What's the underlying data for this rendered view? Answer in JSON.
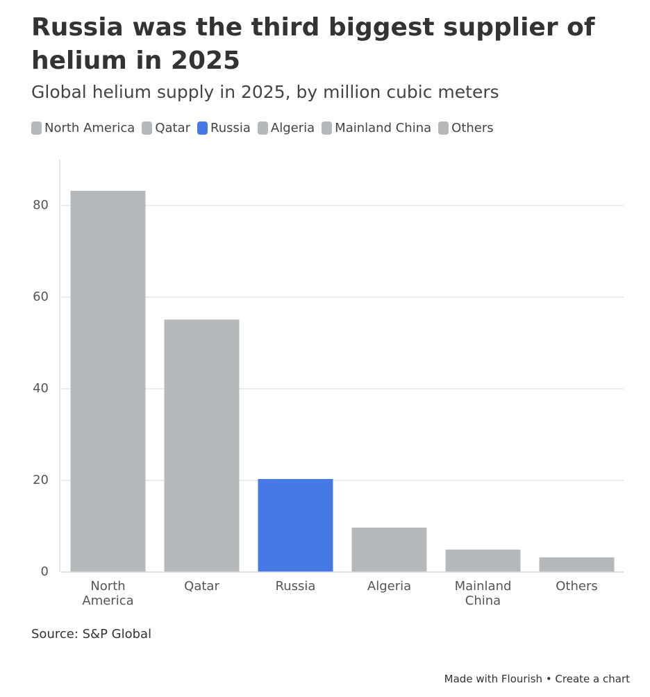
{
  "chart_data": {
    "type": "bar",
    "title": "Russia was the third biggest supplier of helium in 2025",
    "subtitle": "Global helium supply in 2025, by million cubic meters",
    "categories": [
      "North America",
      "Qatar",
      "Russia",
      "Algeria",
      "Mainland China",
      "Others"
    ],
    "values": [
      83.2,
      55.1,
      20.3,
      9.7,
      4.9,
      3.2
    ],
    "colors": [
      "#b6b9bc",
      "#b6b9bc",
      "#4679e6",
      "#b6b9bc",
      "#b6b9bc",
      "#b6b9bc"
    ],
    "ylim": [
      0,
      90
    ],
    "yticks": [
      0,
      20,
      40,
      60,
      80
    ],
    "grid": true,
    "legend": "top",
    "source": "Source: S&P Global",
    "footer": "Made with Flourish • Create a chart"
  }
}
